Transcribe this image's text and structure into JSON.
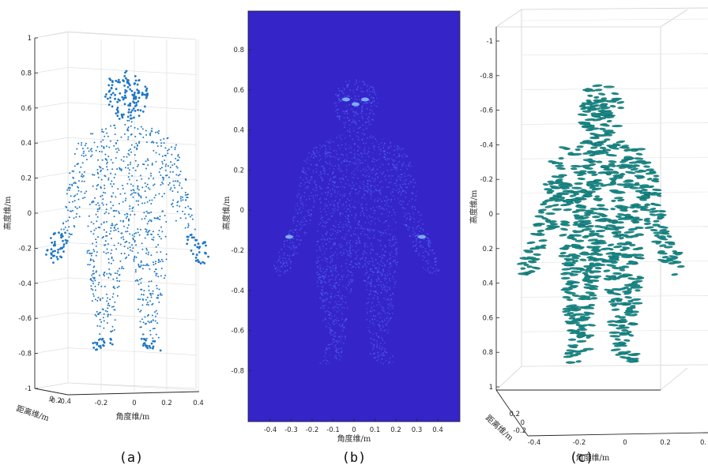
{
  "colors": {
    "panel_a_points": "#1f77c4",
    "panel_b_background": "#3524c8",
    "panel_b_points": "#5060f4",
    "panel_b_hotspot": "#8fd8ff",
    "panel_c_points": "#1a8f8c",
    "axis": "#262626",
    "grid": "#dcdcdc"
  },
  "chart_data": [
    {
      "type": "scatter",
      "caption": "(a)",
      "ylabel": "高度维/m",
      "xlabel": "角度维/m",
      "zlabel": "距离维/m",
      "ylim": [
        -1,
        1
      ],
      "xlim": [
        -0.4,
        0.4
      ],
      "yticks": [
        "1",
        "0.8",
        "0.6",
        "0.4",
        "0.2",
        "0",
        "-0.2",
        "-0.4",
        "-0.6",
        "-0.8",
        "-1"
      ],
      "xticks": [
        "-0.2",
        "0",
        "0.2",
        "0.4"
      ],
      "zticks": [
        "0",
        "-0.2",
        "-0.4"
      ],
      "grid": true,
      "view": "3d",
      "content": "human body point cloud (front view)"
    },
    {
      "type": "heatmap",
      "caption": "(b)",
      "ylabel": "高度维/m",
      "xlabel": "角度维/m",
      "ylim": [
        -0.9,
        0.9
      ],
      "xlim": [
        -0.5,
        0.5
      ],
      "yticks": [
        "0.8",
        "0.6",
        "0.4",
        "0.2",
        "0",
        "-0.2",
        "-0.4",
        "-0.6",
        "-0.8"
      ],
      "xticks": [
        "-0.4",
        "-0.3",
        "-0.2",
        "-0.1",
        "0",
        "0.1",
        "0.2",
        "0.3",
        "0.4"
      ],
      "grid": false,
      "content": "2D reflectivity image of human body"
    },
    {
      "type": "scatter",
      "caption": "(c)",
      "ylabel": "高度维/m",
      "xlabel": "角度维/m",
      "zlabel": "距离维/m",
      "ylim": [
        -1,
        1
      ],
      "xlim": [
        -0.4,
        0.4
      ],
      "yticks": [
        "-1",
        "-0.8",
        "-0.6",
        "-0.4",
        "-0.2",
        "0",
        "0.2",
        "0.4",
        "0.6",
        "0.8",
        "1"
      ],
      "xticks": [
        "-0.4",
        "-0.2",
        "0",
        "0.2",
        "0."
      ],
      "zticks": [
        "0.2",
        "0",
        "-0.2"
      ],
      "grid": true,
      "view": "3d box",
      "content": "reconstructed human body surface patches"
    }
  ]
}
